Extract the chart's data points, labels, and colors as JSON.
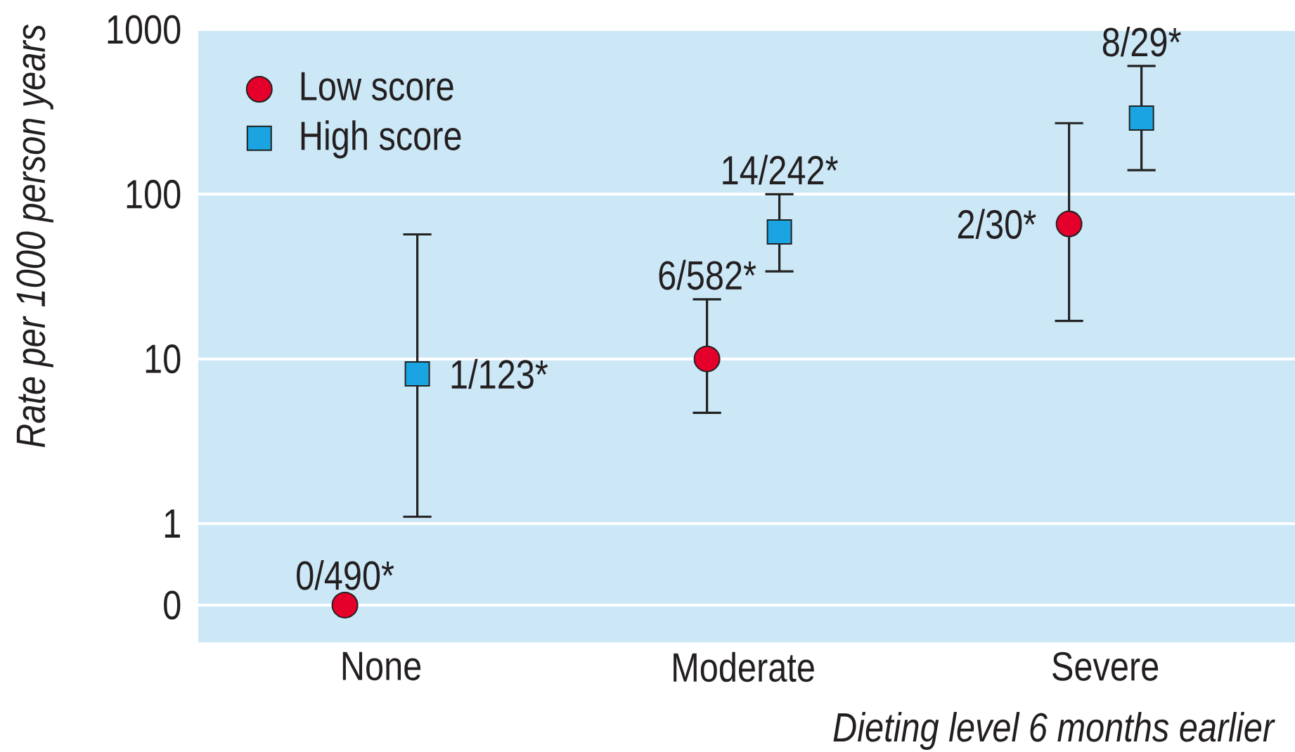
{
  "chart_data": {
    "type": "scatter",
    "categories": [
      "None",
      "Moderate",
      "Severe"
    ],
    "series": [
      {
        "name": "Low score",
        "color": "#e4002b",
        "marker": "circle",
        "values": [
          0.32,
          10,
          66
        ],
        "errors": [
          null,
          [
            4.7,
            23
          ],
          [
            17,
            270
          ]
        ],
        "value_labels": [
          "0/490*",
          "6/582*",
          "2/30*"
        ]
      },
      {
        "name": "High score",
        "color": "#1aa5e2",
        "marker": "square",
        "values": [
          8.1,
          59,
          290
        ],
        "errors": [
          [
            1.1,
            57
          ],
          [
            34,
            100
          ],
          [
            140,
            600
          ]
        ],
        "value_labels": [
          "1/123*",
          "14/242*",
          "8/29*"
        ]
      }
    ],
    "xlabel": "Dieting level 6 months earlier",
    "ylabel": "Rate per 1000 person years",
    "log": "y",
    "ylim": [
      0.19,
      1000
    ],
    "yticks": [
      {
        "value": 0.32,
        "label": "0"
      },
      1,
      10,
      100,
      1000
    ],
    "grid": "y",
    "legend": "top left"
  }
}
